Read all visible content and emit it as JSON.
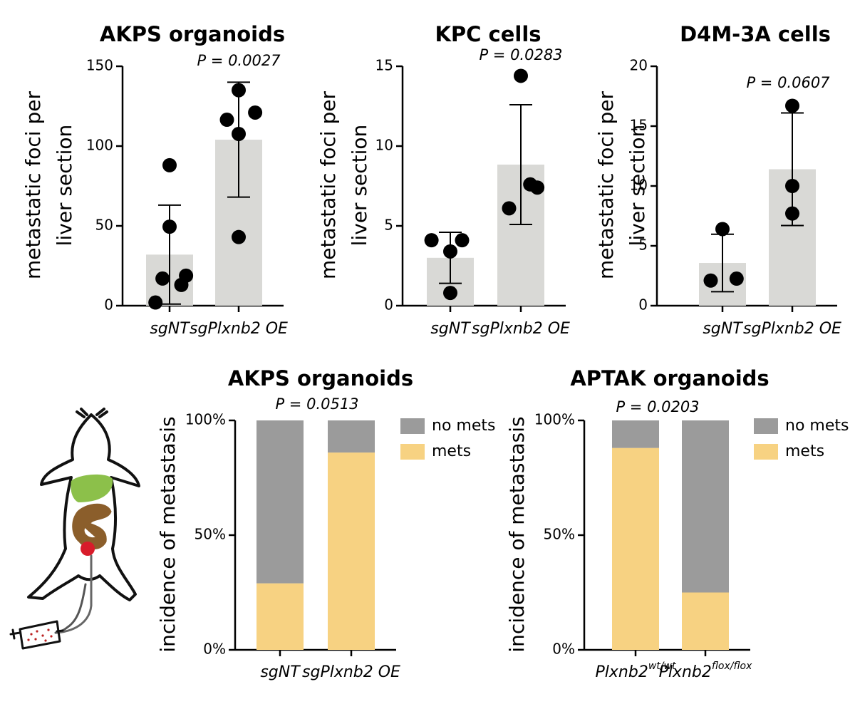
{
  "charts": [
    {
      "chart_data": {
        "type": "bar",
        "title": "AKPS organoids",
        "ylabel_lines": [
          "metastatic foci per",
          "liver section"
        ],
        "categories": [
          "sgNT",
          "sgPlxnb2 OE"
        ],
        "values": [
          32,
          104
        ],
        "errors": [
          31,
          36
        ],
        "points": [
          [
            88,
            49.5,
            18.8,
            17,
            13,
            2
          ],
          [
            135,
            121,
            116.5,
            107.6,
            43
          ]
        ],
        "point_x": [
          [
            0,
            0,
            0.35,
            -0.15,
            0.25,
            -0.3
          ],
          [
            0,
            0.35,
            -0.25,
            0,
            0
          ]
        ],
        "annotation": "P = 0.0027",
        "color": "#d9d9d6",
        "ylim": [
          0,
          150
        ],
        "yticks": [
          0,
          50,
          100,
          150
        ]
      }
    },
    {
      "chart_data": {
        "type": "bar",
        "title": "KPC cells",
        "ylabel_lines": [
          "metastatic foci per",
          "liver section"
        ],
        "categories": [
          "sgNT",
          "sgPlxnb2 OE"
        ],
        "values": [
          3.0,
          8.84
        ],
        "errors": [
          1.6,
          3.75
        ],
        "points": [
          [
            4.1,
            4.1,
            3.4,
            0.8
          ],
          [
            14.4,
            7.6,
            7.4,
            6.1
          ]
        ],
        "point_x": [
          [
            -0.4,
            0.25,
            0,
            0
          ],
          [
            0,
            0.2,
            0.35,
            -0.25
          ]
        ],
        "annotation": "P = 0.0283",
        "color": "#d9d9d6",
        "ylim": [
          0,
          15
        ],
        "yticks": [
          0,
          5,
          10,
          15
        ]
      }
    },
    {
      "chart_data": {
        "type": "bar",
        "title": "D4M-3A cells",
        "ylabel_lines": [
          "metastatic foci per",
          "liver section"
        ],
        "categories": [
          "sgNT",
          "sgPlxnb2 OE"
        ],
        "values": [
          3.57,
          11.4
        ],
        "errors": [
          2.4,
          4.7
        ],
        "points": [
          [
            6.4,
            2.26,
            2.1
          ],
          [
            16.7,
            10.0,
            7.7
          ]
        ],
        "point_x": [
          [
            0,
            0.3,
            -0.25
          ],
          [
            0,
            0,
            0
          ]
        ],
        "annotation": "P = 0.0607",
        "color": "#d9d9d6",
        "ylim": [
          0,
          20
        ],
        "yticks": [
          0,
          5,
          10,
          15,
          20
        ]
      }
    },
    {
      "chart_data": {
        "type": "stacked_bar",
        "title": "AKPS organoids",
        "ylabel_lines": [
          "incidence of metastasis"
        ],
        "categories": [
          "sgNT",
          "sgPlxnb2 OE"
        ],
        "series": [
          {
            "name": "no mets",
            "color": "#9b9b9b",
            "values": [
              71,
              14
            ]
          },
          {
            "name": "mets",
            "color": "#f7d282",
            "values": [
              29,
              86
            ]
          }
        ],
        "annotation": "P = 0.0513",
        "ylim": [
          0,
          100
        ],
        "yticks": [
          {
            "value": 0,
            "label": "0%"
          },
          {
            "value": 50,
            "label": "50%"
          },
          {
            "value": 100,
            "label": "100%"
          }
        ]
      }
    },
    {
      "chart_data": {
        "type": "stacked_bar",
        "title": "APTAK organoids",
        "ylabel_lines": [
          "incidence of metastasis"
        ],
        "categories": [
          "Plxnb2",
          "Plxnb2"
        ],
        "category_superscripts": [
          "wt/wt",
          "flox/flox"
        ],
        "series": [
          {
            "name": "no mets",
            "color": "#9b9b9b",
            "values": [
              12,
              75
            ]
          },
          {
            "name": "mets",
            "color": "#f7d282",
            "values": [
              88,
              25
            ]
          }
        ],
        "annotation": "P = 0.0203",
        "ylim": [
          0,
          100
        ],
        "yticks": [
          {
            "value": 0,
            "label": "0%"
          },
          {
            "value": 50,
            "label": "50%"
          },
          {
            "value": 100,
            "label": "100%"
          }
        ]
      }
    }
  ]
}
